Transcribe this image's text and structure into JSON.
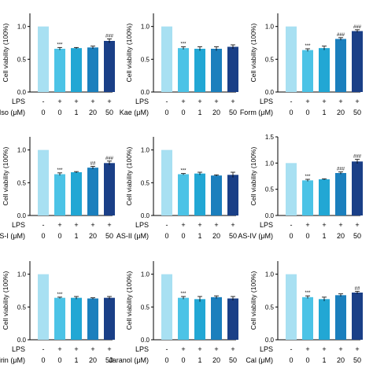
{
  "figure": {
    "ylabel": "Cell viability (100%)",
    "lps_label": "LPS",
    "colors": [
      "#a8e0f2",
      "#4cc3e6",
      "#22a7d4",
      "#1b7fbd",
      "#1a3f87"
    ]
  },
  "chart_data": [
    {
      "type": "bar",
      "compound": "Iso (μM)",
      "categories": [
        "0",
        "0",
        "1",
        "20",
        "50"
      ],
      "lps": [
        "-",
        "+",
        "+",
        "+",
        "+"
      ],
      "values": [
        1.0,
        0.66,
        0.67,
        0.68,
        0.78
      ],
      "errors": [
        0,
        0.02,
        0.01,
        0.02,
        0.03
      ],
      "annotations": [
        "",
        "***",
        "",
        "",
        "###"
      ],
      "yticks": [
        "0.0",
        "0.5",
        "1.0"
      ],
      "ylim": [
        0,
        1.2
      ],
      "ylabel": "Cell viability (100%)"
    },
    {
      "type": "bar",
      "compound": "Kae (μM)",
      "categories": [
        "0",
        "0",
        "1",
        "20",
        "50"
      ],
      "lps": [
        "-",
        "+",
        "+",
        "+",
        "+"
      ],
      "values": [
        1.0,
        0.67,
        0.66,
        0.66,
        0.69
      ],
      "errors": [
        0,
        0.02,
        0.03,
        0.03,
        0.03
      ],
      "annotations": [
        "",
        "***",
        "",
        "",
        ""
      ],
      "yticks": [
        "0.0",
        "0.5",
        "1.0"
      ],
      "ylim": [
        0,
        1.2
      ],
      "ylabel": "Cell viability (100%)"
    },
    {
      "type": "bar",
      "compound": "Form (μM)",
      "categories": [
        "0",
        "0",
        "1",
        "20",
        "50"
      ],
      "lps": [
        "-",
        "+",
        "+",
        "+",
        "+"
      ],
      "values": [
        1.0,
        0.64,
        0.67,
        0.81,
        0.93
      ],
      "errors": [
        0,
        0.02,
        0.03,
        0.02,
        0.02
      ],
      "annotations": [
        "",
        "***",
        "",
        "###",
        "###"
      ],
      "yticks": [
        "0.0",
        "0.5",
        "1.0"
      ],
      "ylim": [
        0,
        1.2
      ],
      "ylabel": "Cell viability (100%)"
    },
    {
      "type": "bar",
      "compound": "AS-I (μM)",
      "categories": [
        "0",
        "0",
        "1",
        "20",
        "50"
      ],
      "lps": [
        "-",
        "+",
        "+",
        "+",
        "+"
      ],
      "values": [
        1.0,
        0.63,
        0.66,
        0.73,
        0.8
      ],
      "errors": [
        0,
        0.02,
        0.01,
        0.02,
        0.03
      ],
      "annotations": [
        "",
        "***",
        "",
        "##",
        "###"
      ],
      "yticks": [
        "0.0",
        "0.5",
        "1.0"
      ],
      "ylim": [
        0,
        1.2
      ],
      "ylabel": "Cell viability (100%)"
    },
    {
      "type": "bar",
      "compound": "AS-II (μM)",
      "categories": [
        "0",
        "0",
        "1",
        "20",
        "50"
      ],
      "lps": [
        "-",
        "+",
        "+",
        "+",
        "+"
      ],
      "values": [
        1.0,
        0.63,
        0.64,
        0.61,
        0.62
      ],
      "errors": [
        0,
        0.01,
        0.02,
        0.01,
        0.04
      ],
      "annotations": [
        "",
        "***",
        "",
        "",
        ""
      ],
      "yticks": [
        "0.0",
        "0.5",
        "1.0"
      ],
      "ylim": [
        0,
        1.2
      ],
      "ylabel": "Cell viability (100%)"
    },
    {
      "type": "bar",
      "compound": "AS-IV (μM)",
      "categories": [
        "0",
        "0",
        "1",
        "20",
        "50"
      ],
      "lps": [
        "-",
        "+",
        "+",
        "+",
        "+"
      ],
      "values": [
        1.0,
        0.67,
        0.69,
        0.81,
        1.03
      ],
      "errors": [
        0,
        0.02,
        0.01,
        0.02,
        0.04
      ],
      "annotations": [
        "",
        "***",
        "",
        "###",
        "###"
      ],
      "yticks": [
        "0.0",
        "0.5",
        "1.0",
        "1.5"
      ],
      "ylim": [
        0,
        1.5
      ],
      "ylabel": "Cell viability (100%)"
    },
    {
      "type": "bar",
      "compound": "Mairin (μM)",
      "categories": [
        "0",
        "0",
        "1",
        "20",
        "50"
      ],
      "lps": [
        "-",
        "+",
        "+",
        "+",
        "+"
      ],
      "values": [
        1.0,
        0.64,
        0.64,
        0.63,
        0.64
      ],
      "errors": [
        0,
        0.01,
        0.02,
        0.01,
        0.02
      ],
      "annotations": [
        "",
        "***",
        "",
        "",
        ""
      ],
      "yticks": [
        "0.0",
        "0.5",
        "1.0"
      ],
      "ylim": [
        0,
        1.2
      ],
      "ylabel": "Cell viability (100%)"
    },
    {
      "type": "bar",
      "compound": "Jaranol (μM)",
      "categories": [
        "0",
        "0",
        "1",
        "20",
        "50"
      ],
      "lps": [
        "-",
        "+",
        "+",
        "+",
        "+"
      ],
      "values": [
        1.0,
        0.64,
        0.62,
        0.65,
        0.63
      ],
      "errors": [
        0,
        0.02,
        0.04,
        0.02,
        0.03
      ],
      "annotations": [
        "",
        "***",
        "",
        "",
        ""
      ],
      "yticks": [
        "0.0",
        "0.5",
        "1.0"
      ],
      "ylim": [
        0,
        1.2
      ],
      "ylabel": "Cell viability (100%)"
    },
    {
      "type": "bar",
      "compound": "Cal (μM)",
      "categories": [
        "0",
        "0",
        "1",
        "20",
        "50"
      ],
      "lps": [
        "-",
        "+",
        "+",
        "+",
        "+"
      ],
      "values": [
        1.0,
        0.65,
        0.62,
        0.68,
        0.72
      ],
      "errors": [
        0,
        0.02,
        0.03,
        0.02,
        0.02
      ],
      "annotations": [
        "",
        "***",
        "",
        "",
        "##"
      ],
      "yticks": [
        "0.0",
        "0.5",
        "1.0"
      ],
      "ylim": [
        0,
        1.2
      ],
      "ylabel": "Cell viability (100%)"
    }
  ]
}
